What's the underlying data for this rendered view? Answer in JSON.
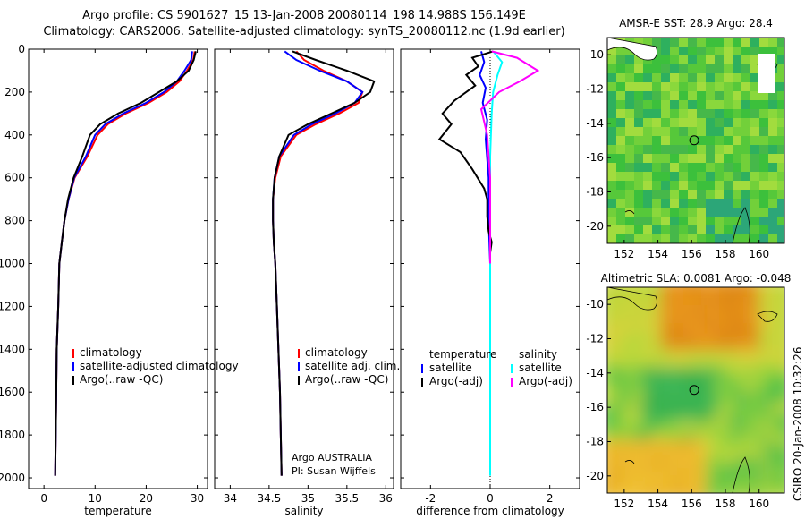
{
  "title_line1": "Argo profile: CS 5901627_15 13-Jan-2008 20080114_198 14.988S 156.149E",
  "title_line2": "Climatology: CARS2006. Satellite-adjusted climatology: synTS_20080112.nc (1.9d earlier)",
  "credit_argo": "Argo AUSTRALIA",
  "credit_pi": "PI: Susan Wijffels",
  "credit_csiro": "CSIRO 20-Jan-2008 10:32:26",
  "colors": {
    "climatology": "#ff0000",
    "satellite": "#0000ff",
    "argo": "#000000",
    "sat_diff": "#00ffff",
    "argo_diff_sal": "#ff00ff"
  },
  "chart_data": [
    {
      "type": "line",
      "xlabel": "temperature",
      "ylabel": "",
      "xlim": [
        -3,
        32
      ],
      "ylim": [
        2050,
        0
      ],
      "xticks": [
        0,
        10,
        20,
        30
      ],
      "yticks": [
        0,
        200,
        400,
        600,
        800,
        1000,
        1200,
        1400,
        1600,
        1800,
        2000
      ],
      "legend": [
        "climatology",
        "satellite-adjusted climatology",
        "Argo(..raw -QC)"
      ],
      "series": [
        {
          "name": "climatology",
          "color": "#ff0000",
          "x": [
            29.5,
            29.2,
            28.0,
            26.5,
            24.0,
            20.5,
            16.0,
            12.5,
            10.5,
            8.5,
            6.0,
            4.8,
            4.0,
            3.5,
            3.0,
            2.8,
            2.5,
            2.4,
            2.3,
            2.2
          ],
          "y": [
            10,
            50,
            100,
            150,
            200,
            250,
            300,
            350,
            400,
            500,
            600,
            700,
            800,
            900,
            1000,
            1200,
            1400,
            1600,
            1800,
            1990
          ]
        },
        {
          "name": "satellite-adjusted climatology",
          "color": "#0000ff",
          "x": [
            29.0,
            28.8,
            27.5,
            26.0,
            23.5,
            20.0,
            15.5,
            12.0,
            10.0,
            8.2,
            5.9,
            4.8,
            4.0,
            3.5,
            3.0,
            2.8,
            2.5,
            2.4,
            2.3,
            2.2
          ],
          "y": [
            10,
            50,
            100,
            150,
            200,
            250,
            300,
            350,
            400,
            500,
            600,
            700,
            800,
            900,
            1000,
            1200,
            1400,
            1600,
            1800,
            1990
          ]
        },
        {
          "name": "Argo(..raw -QC)",
          "color": "#000000",
          "x": [
            29.7,
            29.3,
            28.3,
            26.0,
            22.5,
            19.0,
            14.5,
            11.0,
            9.0,
            7.5,
            5.8,
            4.7,
            4.0,
            3.5,
            3.0,
            2.8,
            2.5,
            2.4,
            2.3,
            2.2
          ],
          "y": [
            10,
            50,
            100,
            150,
            200,
            250,
            300,
            350,
            400,
            500,
            600,
            700,
            800,
            900,
            1000,
            1200,
            1400,
            1600,
            1800,
            1990
          ]
        }
      ]
    },
    {
      "type": "line",
      "xlabel": "salinity",
      "ylabel": "",
      "xlim": [
        33.8,
        36.1
      ],
      "ylim": [
        2050,
        0
      ],
      "xticks": [
        34,
        34.5,
        35,
        35.5,
        36
      ],
      "xticklabels": [
        "34",
        "34.5",
        "35",
        "35.5",
        "36"
      ],
      "yticks": [
        0,
        200,
        400,
        600,
        800,
        1000,
        1200,
        1400,
        1600,
        1800,
        2000
      ],
      "legend": [
        "climatology",
        "satellite adj. clim.",
        "Argo(..raw -QC)"
      ],
      "series": [
        {
          "name": "climatology",
          "color": "#ff0000",
          "x": [
            34.85,
            34.95,
            35.2,
            35.5,
            35.7,
            35.65,
            35.4,
            35.1,
            34.85,
            34.65,
            34.58,
            34.55,
            34.55,
            34.56,
            34.58,
            34.6,
            34.62,
            34.64,
            34.65,
            34.66
          ],
          "y": [
            10,
            50,
            100,
            150,
            200,
            250,
            300,
            350,
            400,
            500,
            600,
            700,
            800,
            900,
            1000,
            1200,
            1400,
            1600,
            1800,
            1990
          ]
        },
        {
          "name": "satellite adj. clim.",
          "color": "#0000ff",
          "x": [
            34.7,
            34.85,
            35.15,
            35.5,
            35.7,
            35.6,
            35.35,
            35.05,
            34.82,
            34.63,
            34.57,
            34.55,
            34.55,
            34.56,
            34.58,
            34.6,
            34.62,
            34.64,
            34.65,
            34.66
          ],
          "y": [
            10,
            50,
            100,
            150,
            200,
            250,
            300,
            350,
            400,
            500,
            600,
            700,
            800,
            900,
            1000,
            1200,
            1400,
            1600,
            1800,
            1990
          ]
        },
        {
          "name": "Argo(..raw -QC)",
          "color": "#000000",
          "x": [
            34.8,
            35.1,
            35.5,
            35.85,
            35.8,
            35.6,
            35.3,
            35.0,
            34.75,
            34.63,
            34.57,
            34.55,
            34.55,
            34.56,
            34.58,
            34.6,
            34.62,
            34.64,
            34.65,
            34.66
          ],
          "y": [
            10,
            50,
            100,
            150,
            200,
            250,
            300,
            350,
            400,
            500,
            600,
            700,
            800,
            900,
            1000,
            1200,
            1400,
            1600,
            1800,
            1990
          ]
        }
      ]
    },
    {
      "type": "line",
      "xlabel": "difference from climatology",
      "ylabel": "",
      "xlim": [
        -3,
        3
      ],
      "ylim": [
        2050,
        0
      ],
      "xticks": [
        -2,
        0,
        2
      ],
      "yticks": [
        0,
        200,
        400,
        600,
        800,
        1000,
        1200,
        1400,
        1600,
        1800,
        2000
      ],
      "legend": [
        "temperature",
        "satellite",
        "Argo(-adj)",
        "salinity",
        "satellite",
        "Argo(-adj)"
      ],
      "series": [
        {
          "name": "temperature satellite",
          "color": "#0000ff",
          "x": [
            -0.3,
            -0.2,
            -0.35,
            -0.15,
            -0.25,
            -0.1,
            -0.15,
            -0.05,
            -0.05,
            0,
            0
          ],
          "y": [
            10,
            60,
            120,
            180,
            250,
            330,
            420,
            600,
            800,
            1000,
            1400
          ]
        },
        {
          "name": "temperature Argo(-adj)",
          "color": "#000000",
          "x": [
            0.1,
            -0.6,
            -0.4,
            -0.8,
            -0.5,
            -1.2,
            -1.6,
            -1.3,
            -1.7,
            -1.0,
            -0.6,
            -0.2,
            -0.1,
            -0.1,
            -0.05,
            0.05,
            0
          ],
          "y": [
            10,
            40,
            80,
            120,
            170,
            240,
            300,
            350,
            420,
            480,
            560,
            650,
            700,
            780,
            850,
            900,
            950
          ]
        },
        {
          "name": "salinity satellite",
          "color": "#00ffff",
          "x": [
            0.1,
            0.4,
            0.25,
            0.1,
            0.05,
            0,
            0,
            0,
            0,
            0
          ],
          "y": [
            10,
            60,
            120,
            200,
            300,
            500,
            800,
            1200,
            1600,
            1990
          ]
        },
        {
          "name": "salinity Argo(-adj)",
          "color": "#ff00ff",
          "x": [
            0.05,
            0.9,
            1.6,
            1.0,
            0.3,
            -0.3,
            -0.1,
            0,
            0,
            0
          ],
          "y": [
            10,
            40,
            100,
            150,
            200,
            280,
            400,
            600,
            800,
            1000
          ]
        }
      ]
    },
    {
      "type": "heatmap",
      "title": "AMSR-E SST: 28.9 Argo: 28.4",
      "xlim": [
        151,
        161.5
      ],
      "ylim": [
        -21,
        -9
      ],
      "xticks": [
        152,
        154,
        156,
        158,
        160
      ],
      "yticks": [
        -10,
        -12,
        -14,
        -16,
        -18,
        -20
      ],
      "marker": {
        "lon": 156.149,
        "lat": -14.988
      }
    },
    {
      "type": "heatmap",
      "title": "Altimetric SLA: 0.0081 Argo: -0.048",
      "xlim": [
        151,
        161.5
      ],
      "ylim": [
        -21,
        -9
      ],
      "xticks": [
        152,
        154,
        156,
        158,
        160
      ],
      "yticks": [
        -10,
        -12,
        -14,
        -16,
        -18,
        -20
      ],
      "marker": {
        "lon": 156.149,
        "lat": -14.988
      }
    }
  ]
}
